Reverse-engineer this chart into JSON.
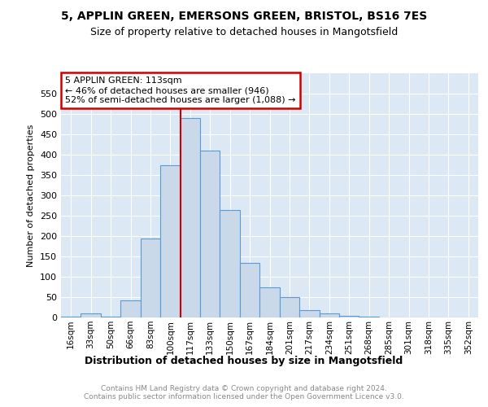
{
  "title1": "5, APPLIN GREEN, EMERSONS GREEN, BRISTOL, BS16 7ES",
  "title2": "Size of property relative to detached houses in Mangotsfield",
  "xlabel": "Distribution of detached houses by size in Mangotsfield",
  "ylabel": "Number of detached properties",
  "bin_labels": [
    "16sqm",
    "33sqm",
    "50sqm",
    "66sqm",
    "83sqm",
    "100sqm",
    "117sqm",
    "133sqm",
    "150sqm",
    "167sqm",
    "184sqm",
    "201sqm",
    "217sqm",
    "234sqm",
    "251sqm",
    "268sqm",
    "285sqm",
    "301sqm",
    "318sqm",
    "335sqm",
    "352sqm"
  ],
  "bar_heights": [
    3,
    10,
    3,
    42,
    195,
    375,
    490,
    410,
    265,
    135,
    75,
    50,
    18,
    10,
    5,
    2,
    1,
    1,
    0,
    0,
    0
  ],
  "bar_color": "#c9d9ea",
  "bar_edge_color": "#5b9bd5",
  "vline_color": "#cc0000",
  "annotation_text": "5 APPLIN GREEN: 113sqm\n← 46% of detached houses are smaller (946)\n52% of semi-detached houses are larger (1,088) →",
  "annotation_box_color": "#cc0000",
  "ylim": [
    0,
    600
  ],
  "yticks": [
    0,
    50,
    100,
    150,
    200,
    250,
    300,
    350,
    400,
    450,
    500,
    550
  ],
  "footer_text": "Contains HM Land Registry data © Crown copyright and database right 2024.\nContains public sector information licensed under the Open Government Licence v3.0.",
  "background_color": "#dce9f5",
  "plot_background": "#ffffff",
  "title1_fontsize": 10,
  "title2_fontsize": 9,
  "ylabel_fontsize": 8,
  "xlabel_fontsize": 9
}
